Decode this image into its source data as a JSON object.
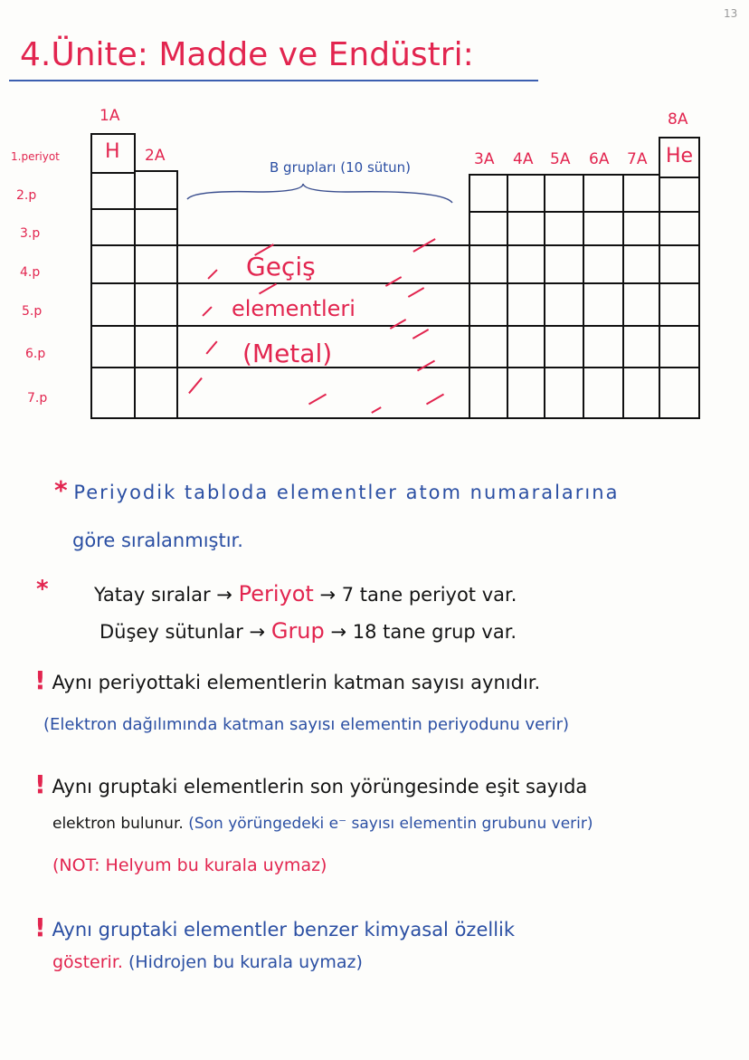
{
  "page_number": "13",
  "title": "4.Ünite: Madde ve Endüstri:",
  "colors": {
    "red": "#e2254f",
    "blue": "#2b4fa3",
    "black": "#141414"
  },
  "table": {
    "group_labels": {
      "g1": "1A",
      "g2": "2A",
      "g3": "3A",
      "g4": "4A",
      "g5": "5A",
      "g6": "6A",
      "g7": "7A",
      "g8": "8A"
    },
    "elements": {
      "h": "H",
      "he": "He"
    },
    "period_labels": [
      "1.periyot",
      "2.p",
      "3.p",
      "4.p",
      "5.p",
      "6.p",
      "7.p"
    ],
    "b_groups_label": "B grupları (10 sütun)",
    "transition_lines": [
      "Geçiş",
      "elementleri",
      "(Metal)"
    ]
  },
  "notes": {
    "n1_mark": "*",
    "n1_line1": "Periyodik tabloda elementler atom numaralarına",
    "n1_line2": "göre sıralanmıştır.",
    "n2_mark": "*",
    "n2_a_left": "Yatay sıralar →",
    "n2_a_key": "Periyot",
    "n2_a_right": "→ 7 tane periyot var.",
    "n2_b_left": "Düşey sütunlar →",
    "n2_b_key": "Grup",
    "n2_b_right": "→ 18 tane grup var.",
    "n3_mark": "!",
    "n3_line1": "Aynı periyottaki elementlerin katman sayısı aynıdır.",
    "n3_line2": "(Elektron dağılımında katman sayısı elementin periyodunu verir)",
    "n4_mark": "!",
    "n4_line1": "Aynı gruptaki elementlerin son yörüngesinde eşit sayıda",
    "n4_line2a": "elektron bulunur.",
    "n4_line2b": "(Son yörüngedeki e⁻ sayısı elementin grubunu verir)",
    "n4_line3": "(NOT: Helyum bu kurala uymaz)",
    "n5_mark": "!",
    "n5_line1": "Aynı gruptaki elementler benzer kimyasal özellik",
    "n5_line2a": "gösterir.",
    "n5_line2b": "(Hidrojen bu kurala uymaz)"
  }
}
